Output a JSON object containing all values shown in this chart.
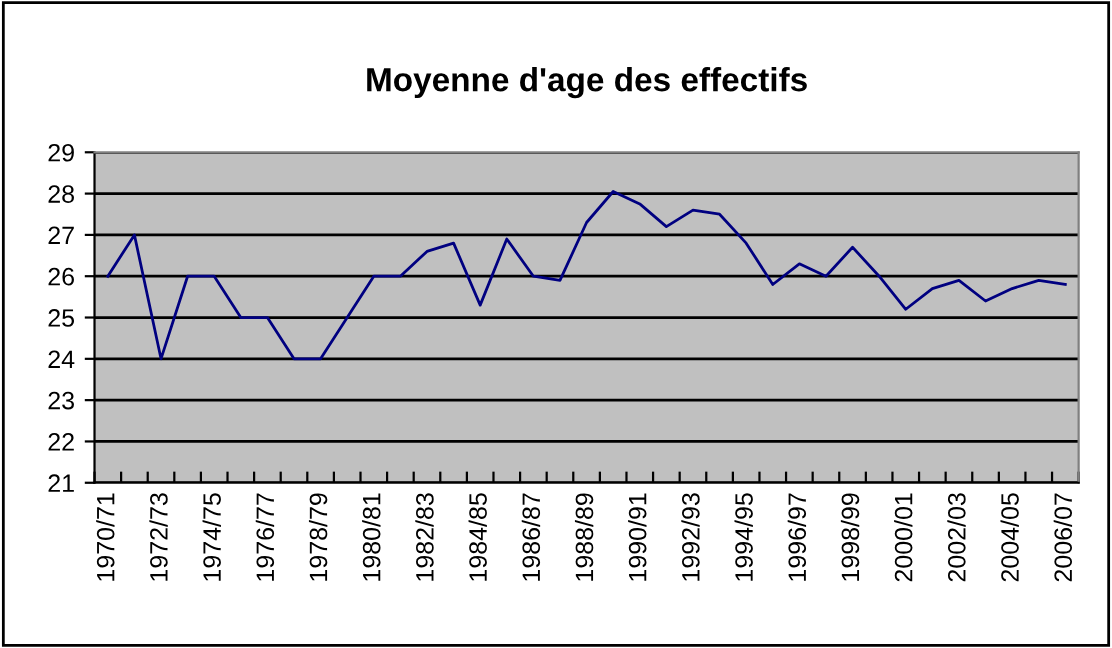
{
  "chart_data": {
    "type": "line",
    "title": "Moyenne d'age des effectifs",
    "categories": [
      "1970/71",
      null,
      "1972/73",
      null,
      "1974/75",
      null,
      "1976/77",
      null,
      "1978/79",
      null,
      "1980/81",
      null,
      "1982/83",
      null,
      "1984/85",
      null,
      "1986/87",
      null,
      "1988/89",
      null,
      "1990/91",
      null,
      "1992/93",
      null,
      "1994/95",
      null,
      "1996/97",
      null,
      "1998/99",
      null,
      "2000/01",
      null,
      "2002/03",
      null,
      "2004/05",
      null,
      "2006/07"
    ],
    "series": [
      {
        "color": "#000080",
        "values": [
          26,
          27,
          24,
          26,
          26,
          25,
          25,
          24,
          24,
          25,
          26,
          26,
          26.6,
          26.8,
          25.3,
          26.9,
          26,
          25.9,
          27.3,
          28.05,
          27.75,
          27.2,
          27.6,
          27.5,
          26.8,
          25.8,
          26.3,
          26,
          26.7,
          26,
          25.2,
          25.7,
          25.9,
          25.4,
          25.7,
          25.9,
          25.8
        ]
      }
    ],
    "ylim": [
      21,
      29
    ],
    "yticks": [
      21,
      22,
      23,
      24,
      25,
      26,
      27,
      28,
      29
    ],
    "grid": "y",
    "legend": false,
    "marker": "none",
    "line_style": "solid"
  }
}
